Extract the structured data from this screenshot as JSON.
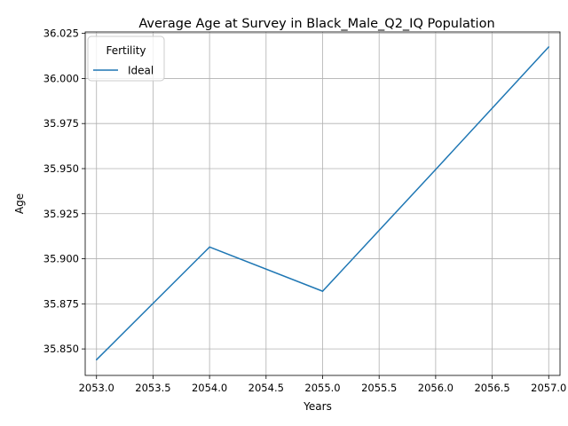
{
  "chart_data": {
    "type": "line",
    "title": "Average Age at Survey in Black_Male_Q2_IQ Population",
    "xlabel": "Years",
    "ylabel": "Age",
    "xlim": [
      2052.9,
      2057.1
    ],
    "ylim": [
      35.8353,
      36.0258
    ],
    "xticks": [
      "2053.0",
      "2053.5",
      "2054.0",
      "2054.5",
      "2055.0",
      "2055.5",
      "2056.0",
      "2056.5",
      "2057.0"
    ],
    "yticks": [
      "35.850",
      "35.875",
      "35.900",
      "35.925",
      "35.950",
      "35.975",
      "36.000",
      "36.025"
    ],
    "grid": true,
    "legend": {
      "title": "Fertility",
      "placement": "upper-left"
    },
    "series": [
      {
        "name": "Ideal",
        "color": "#1f77b4",
        "x": [
          2053,
          2054,
          2055,
          2056,
          2057
        ],
        "y": [
          35.844,
          35.9065,
          35.882,
          35.9495,
          36.0175
        ]
      }
    ]
  }
}
